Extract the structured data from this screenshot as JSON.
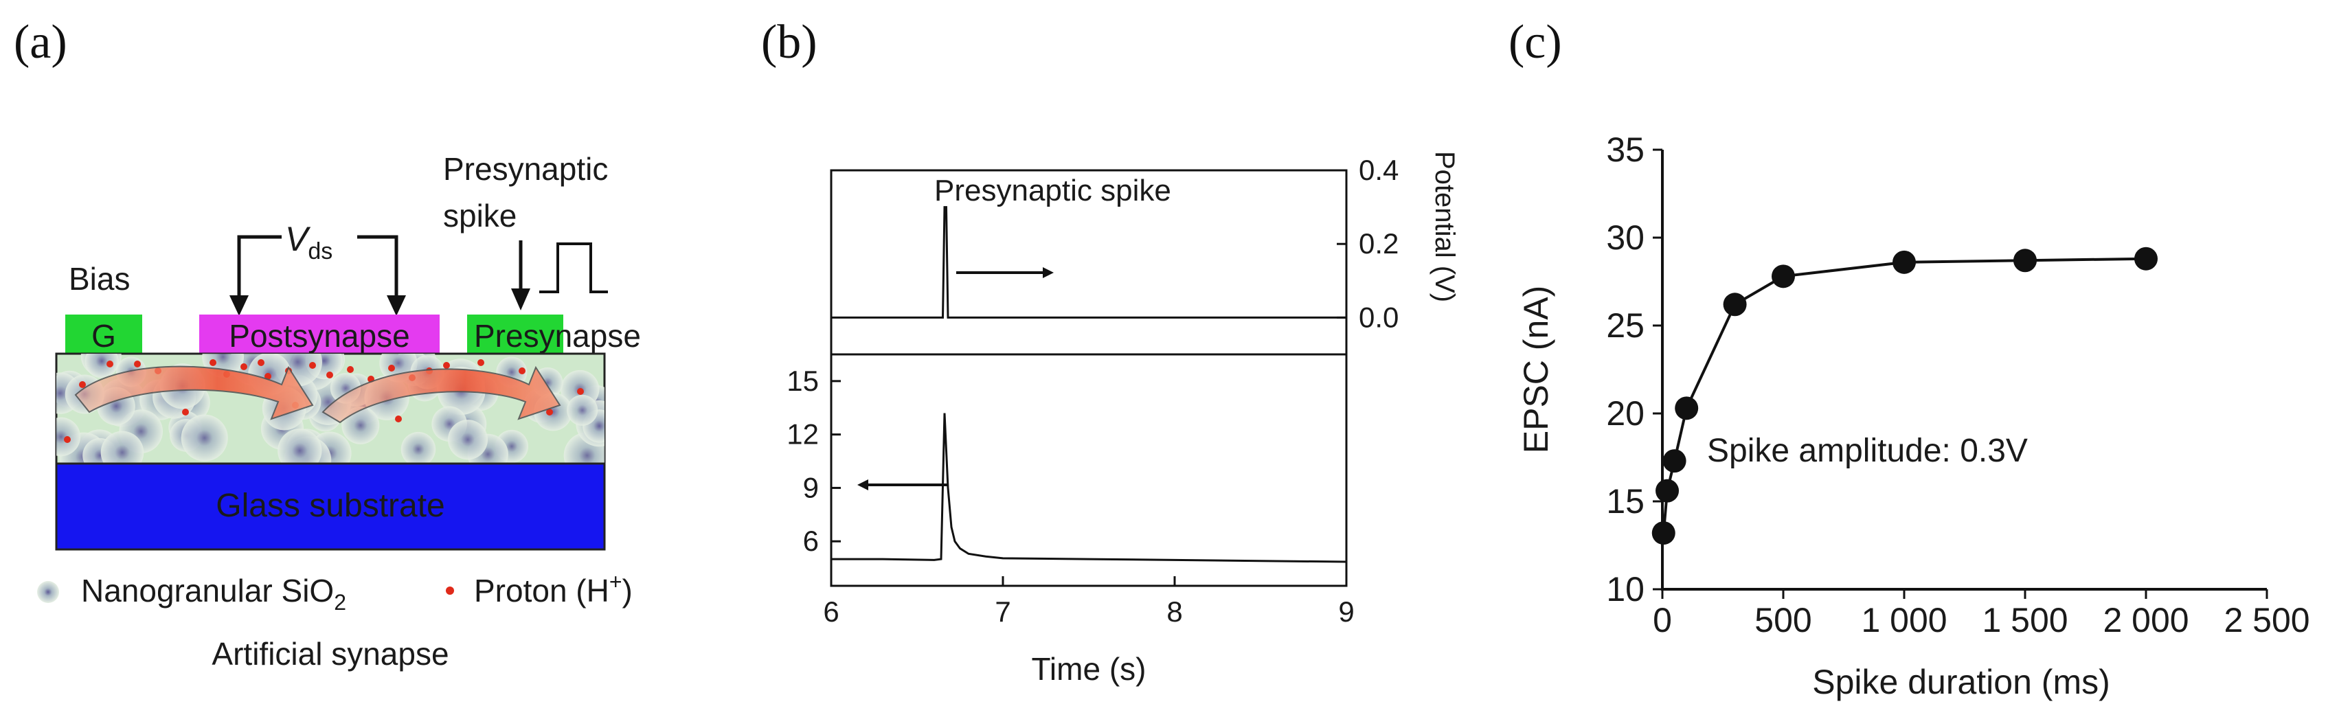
{
  "panels": {
    "a": {
      "label": "(a)",
      "bias": "Bias",
      "gate": "G",
      "vds": "V",
      "vds_sub": "ds",
      "post": "Postsynapse",
      "pre": "Presynapse",
      "pre_spike_line1": "Presynaptic",
      "pre_spike_line2": "spike",
      "substrate": "Glass substrate",
      "legend_nano": "Nanogranular SiO",
      "legend_nano_sub": "2",
      "legend_proton": "Proton (H",
      "legend_proton_sup": "+",
      "legend_proton_end": ")",
      "caption": "Artificial synapse"
    },
    "b": {
      "label": "(b)",
      "top_annotation": "Presynaptic spike",
      "right_axis_label": "Potential (V)",
      "xlabel": "Time (s)"
    },
    "c": {
      "label": "(c)",
      "annotation": "Spike amplitude: 0.3V"
    }
  },
  "colors": {
    "gate_green": "#22d633",
    "electrode_magenta": "#e43bf0",
    "substrate_blue": "#1515f0",
    "film_green": "#cfe8cc",
    "proton_red": "#e02a1a",
    "arrow_red": "#f0603a",
    "substrate_text": "#ffffff"
  },
  "chart_data": [
    {
      "id": "b-top",
      "type": "line",
      "title": "Presynaptic spike",
      "xlabel": "",
      "ylabel": "Potential (V)",
      "xlim": [
        6,
        9
      ],
      "ylim": [
        -0.1,
        0.4
      ],
      "yticks": [
        "0.0",
        "0.2",
        "0.4"
      ],
      "ytick_values": [
        0.0,
        0.2,
        0.4
      ],
      "x": [
        6.0,
        6.65,
        6.66,
        6.67,
        6.68,
        9.0
      ],
      "y": [
        0.0,
        0.0,
        0.3,
        0.3,
        0.0,
        0.0
      ]
    },
    {
      "id": "b-bottom",
      "type": "line",
      "xlabel": "Time (s)",
      "ylabel": "",
      "xlim": [
        6,
        9
      ],
      "ylim": [
        3.5,
        16.5
      ],
      "xticks": [
        "6",
        "7",
        "8",
        "9"
      ],
      "xtick_values": [
        6,
        7,
        8,
        9
      ],
      "yticks": [
        "6",
        "9",
        "12",
        "15"
      ],
      "ytick_values": [
        6,
        9,
        12,
        15
      ],
      "x": [
        6.0,
        6.3,
        6.6,
        6.64,
        6.66,
        6.68,
        6.7,
        6.72,
        6.75,
        6.8,
        6.9,
        7.0,
        7.5,
        8.0,
        8.5,
        9.0
      ],
      "y": [
        5.0,
        5.0,
        4.95,
        5.0,
        13.2,
        9.0,
        6.8,
        6.0,
        5.6,
        5.3,
        5.15,
        5.05,
        5.0,
        4.95,
        4.9,
        4.85
      ]
    },
    {
      "id": "c",
      "type": "scatter",
      "title": "",
      "xlabel": "Spike duration (ms)",
      "ylabel": "EPSC (nA)",
      "xlim": [
        0,
        2500
      ],
      "ylim": [
        10,
        35
      ],
      "xticks": [
        "0",
        "500",
        "1 000",
        "1 500",
        "2 000",
        "2 500"
      ],
      "xtick_values": [
        0,
        500,
        1000,
        1500,
        2000,
        2500
      ],
      "yticks": [
        "10",
        "15",
        "20",
        "25",
        "30",
        "35"
      ],
      "ytick_values": [
        10,
        15,
        20,
        25,
        30,
        35
      ],
      "x": [
        5,
        20,
        50,
        100,
        300,
        500,
        1000,
        1500,
        2000
      ],
      "y": [
        13.2,
        15.6,
        17.3,
        20.3,
        26.2,
        27.8,
        28.6,
        28.7,
        28.8
      ],
      "annotation": "Spike amplitude: 0.3V"
    }
  ]
}
